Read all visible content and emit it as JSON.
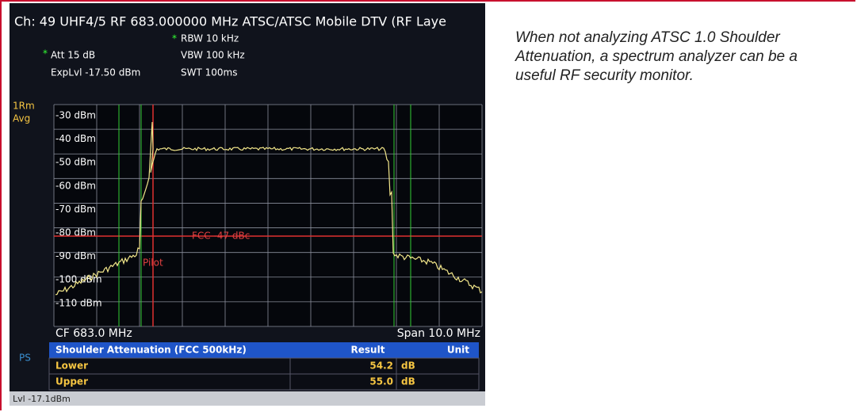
{
  "screen": {
    "header": "Ch:  49  UHF4/5  RF 683.000000 MHz  ATSC/ATSC Mobile DTV (RF Laye",
    "marker": "*",
    "rbw": "RBW 10 kHz",
    "att": "Att  15 dB",
    "vbw": "VBW 100 kHz",
    "explvl": "ExpLvl -17.50 dBm",
    "swt": "SWT 100ms",
    "trace_mode": [
      "1Rm",
      "Avg"
    ],
    "y_labels": [
      "-30 dBm",
      "-40 dBm",
      "-50 dBm",
      "-60 dBm",
      "-70 dBm",
      "-80 dBm",
      "-90 dBm",
      "-100 dBm",
      "-110 dBm"
    ],
    "fcc_label": "FCC -47 dBc",
    "pilot": "Pilot",
    "cf": "CF 683.0 MHz",
    "span": "Span 10.0 MHz",
    "ps": "PS",
    "table": {
      "header": [
        "Shoulder Attenuation (FCC 500kHz)",
        "Result",
        "Unit"
      ],
      "rows": [
        [
          "Lower",
          "54.2",
          "dB"
        ],
        [
          "Upper",
          "55.0",
          "dB"
        ]
      ]
    },
    "status": "Lvl -17.1dBm"
  },
  "caption": "When not analyzing ATSC 1.0 Shoulder Attenuation, a spectrum analyzer can be a useful RF security monitor."
}
